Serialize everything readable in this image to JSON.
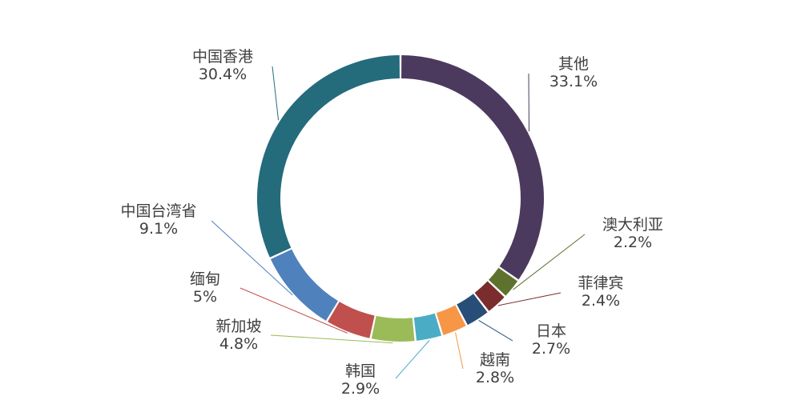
{
  "chart_data": {
    "type": "pie",
    "variant": "donut",
    "legend": "none",
    "data_labels": "outside-with-leader-lines",
    "slices": [
      {
        "label": "其他",
        "value": 33.1,
        "value_text": "33.1%",
        "color": "#4B3A5E"
      },
      {
        "label": "澳大利亚",
        "value": 2.2,
        "value_text": "2.2%",
        "color": "#5E722D"
      },
      {
        "label": "菲律宾",
        "value": 2.4,
        "value_text": "2.4%",
        "color": "#7B2C2C"
      },
      {
        "label": "日本",
        "value": 2.7,
        "value_text": "2.7%",
        "color": "#274D78"
      },
      {
        "label": "越南",
        "value": 2.8,
        "value_text": "2.8%",
        "color": "#F79646"
      },
      {
        "label": "韩国",
        "value": 2.9,
        "value_text": "2.9%",
        "color": "#4BACC6"
      },
      {
        "label": "新加坡",
        "value": 4.8,
        "value_text": "4.8%",
        "color": "#8064A2"
      },
      {
        "label": "缅甸",
        "value": 5,
        "value_text": "5%",
        "color": "#9BBB59"
      },
      {
        "label": "中国台湾省",
        "value": 9.1,
        "value_text": "9.1%",
        "color": "#C0504D"
      },
      {
        "label": "中国香港",
        "value": 30.4,
        "value_text": "30.4%",
        "color": "#4F81BD"
      }
    ]
  }
}
